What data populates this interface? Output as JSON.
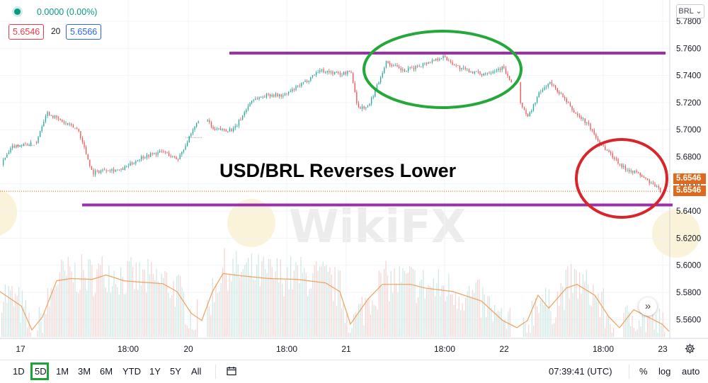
{
  "header": {
    "change": "0.0000 (0.00%)",
    "bid": "5.6546",
    "spread": "20",
    "ask": "5.6566",
    "symbol_button": "BRL"
  },
  "annotation": {
    "headline": "USD/BRL Reverses Lower",
    "line_color": "#9b2fae",
    "resistance_level": 5.7565,
    "support_level": 5.6445,
    "ellipse_top_color": "#24a83a",
    "ellipse_bottom_color": "#d9242a"
  },
  "watermark": "WikiFX",
  "price_tags": [
    "5.6546",
    "5.6546"
  ],
  "chart_data": {
    "type": "candlestick",
    "y_axis_ticks": [
      "5.7800",
      "5.7600",
      "5.7400",
      "5.7200",
      "5.7000",
      "5.6800",
      "5.6600",
      "5.6400",
      "5.6200",
      "5.6000",
      "5.5800",
      "5.5600"
    ],
    "x_axis_ticks": [
      "17",
      "18:00",
      "20",
      "18:00",
      "21",
      "18:00",
      "22",
      "18:00",
      "23"
    ],
    "ylim": [
      5.5485,
      5.7825
    ],
    "last_price": 5.6546,
    "path": [
      [
        0,
        5.674
      ],
      [
        18,
        5.688
      ],
      [
        50,
        5.69
      ],
      [
        65,
        5.713
      ],
      [
        90,
        5.705
      ],
      [
        110,
        5.7
      ],
      [
        130,
        5.668
      ],
      [
        150,
        5.671
      ],
      [
        170,
        5.67
      ],
      [
        200,
        5.68
      ],
      [
        230,
        5.684
      ],
      [
        250,
        5.678
      ],
      [
        270,
        5.697
      ],
      [
        285,
        5.713
      ],
      [
        300,
        5.7
      ],
      [
        330,
        5.7
      ],
      [
        355,
        5.722
      ],
      [
        380,
        5.726
      ],
      [
        400,
        5.725
      ],
      [
        430,
        5.735
      ],
      [
        450,
        5.744
      ],
      [
        480,
        5.741
      ],
      [
        495,
        5.743
      ],
      [
        505,
        5.716
      ],
      [
        520,
        5.717
      ],
      [
        545,
        5.75
      ],
      [
        570,
        5.743
      ],
      [
        600,
        5.749
      ],
      [
        625,
        5.754
      ],
      [
        650,
        5.745
      ],
      [
        680,
        5.741
      ],
      [
        710,
        5.746
      ],
      [
        725,
        5.73
      ],
      [
        745,
        5.709
      ],
      [
        760,
        5.726
      ],
      [
        775,
        5.735
      ],
      [
        790,
        5.727
      ],
      [
        810,
        5.713
      ],
      [
        830,
        5.704
      ],
      [
        845,
        5.691
      ],
      [
        860,
        5.683
      ],
      [
        880,
        5.672
      ],
      [
        900,
        5.668
      ],
      [
        920,
        5.66
      ],
      [
        935,
        5.654
      ]
    ],
    "volume_ma": [
      [
        0,
        0.55
      ],
      [
        30,
        0.35
      ],
      [
        45,
        0.02
      ],
      [
        60,
        0.2
      ],
      [
        80,
        0.7
      ],
      [
        100,
        0.73
      ],
      [
        130,
        0.72
      ],
      [
        150,
        0.78
      ],
      [
        175,
        0.7
      ],
      [
        200,
        0.68
      ],
      [
        230,
        0.66
      ],
      [
        250,
        0.55
      ],
      [
        270,
        0.25
      ],
      [
        285,
        0.15
      ],
      [
        300,
        0.55
      ],
      [
        315,
        0.8
      ],
      [
        340,
        0.77
      ],
      [
        380,
        0.73
      ],
      [
        420,
        0.72
      ],
      [
        460,
        0.67
      ],
      [
        480,
        0.55
      ],
      [
        495,
        0.1
      ],
      [
        520,
        0.45
      ],
      [
        540,
        0.65
      ],
      [
        580,
        0.65
      ],
      [
        600,
        0.6
      ],
      [
        640,
        0.55
      ],
      [
        680,
        0.42
      ],
      [
        710,
        0.15
      ],
      [
        730,
        0.05
      ],
      [
        745,
        0.15
      ],
      [
        760,
        0.5
      ],
      [
        775,
        0.32
      ],
      [
        800,
        0.6
      ],
      [
        815,
        0.65
      ],
      [
        840,
        0.5
      ],
      [
        860,
        0.2
      ],
      [
        875,
        0.05
      ],
      [
        895,
        0.3
      ],
      [
        915,
        0.2
      ],
      [
        935,
        0.1
      ],
      [
        945,
        0.0
      ]
    ]
  },
  "footer": {
    "ranges": [
      "1D",
      "5D",
      "1M",
      "3M",
      "6M",
      "YTD",
      "1Y",
      "5Y",
      "All"
    ],
    "active_range": "5D",
    "clock": "07:39:41 (UTC)",
    "percent": "%",
    "log": "log",
    "auto": "auto"
  },
  "colors": {
    "up": "#26a69a",
    "down": "#ef5350",
    "volume_ma": "#f0a15b",
    "price_tag": "#e06a1c"
  }
}
